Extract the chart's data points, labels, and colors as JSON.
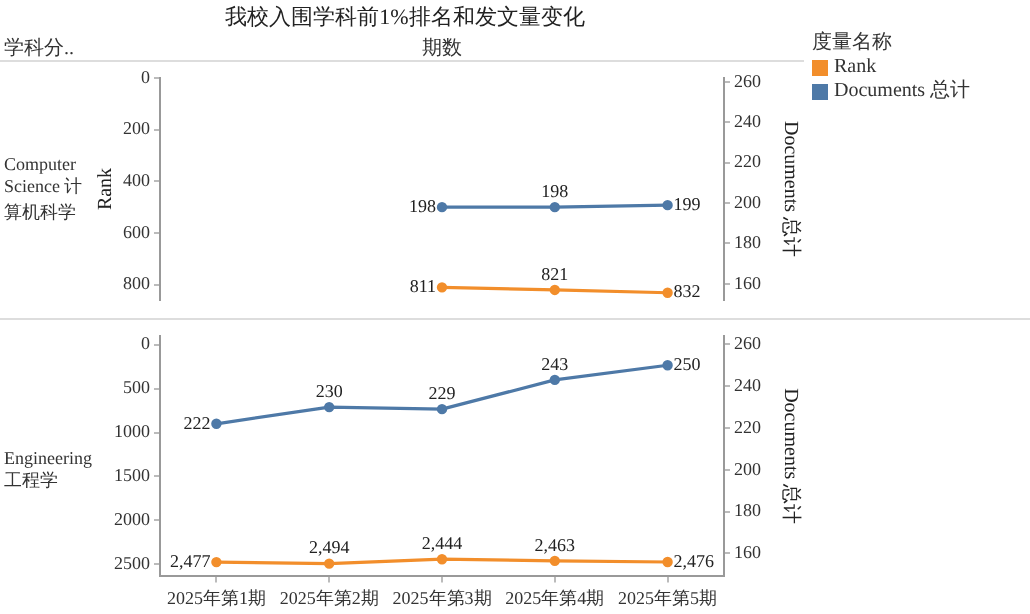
{
  "chart_data": [
    {
      "type": "line",
      "title": "我校入围学科前1%排名和发文量变化",
      "subtitle": "Computer Science 计算机科学",
      "annotations": [
        "学科分..",
        "期数"
      ],
      "legend_title": "度量名称",
      "legend": "right",
      "ylabel": "Rank",
      "y2label": "Documents 总计",
      "categories": [
        "2025年第1期",
        "2025年第2期",
        "2025年第3期",
        "2025年第4期",
        "2025年第5期"
      ],
      "series": [
        {
          "name": "Rank",
          "color": "#f28e2b",
          "values": [
            null,
            null,
            811,
            821,
            832
          ]
        },
        {
          "name": "Documents 总计",
          "color": "#4e79a7",
          "axis": "y2",
          "values": [
            null,
            null,
            198,
            198,
            199
          ]
        }
      ],
      "ylim": [
        860,
        0
      ],
      "yticks": [
        0,
        200,
        400,
        600,
        800
      ],
      "y2lim": [
        152,
        262
      ],
      "y2ticks": [
        160,
        180,
        200,
        220,
        240,
        260
      ],
      "tick_labels": "y",
      "marker": "circle",
      "data_labels": true
    },
    {
      "type": "line",
      "subtitle": "Engineering 工程学",
      "y2label": "Documents 总计",
      "categories": [
        null,
        null,
        null,
        null,
        null
      ],
      "series": [
        {
          "color": "#f28e2b",
          "values": [
            2477,
            2494,
            2444,
            2463,
            2476
          ],
          "value_labels": [
            "2,477",
            "2,494",
            "2,444",
            "2,463",
            "2,476"
          ]
        },
        {
          "color": "#4e79a7",
          "axis": "y2",
          "values": [
            222,
            230,
            229,
            243,
            250
          ]
        }
      ],
      "ylim": [
        2640,
        -100
      ],
      "yticks": [
        0,
        500,
        1000,
        1500,
        2000,
        2500
      ],
      "y2lim": [
        149,
        264
      ],
      "y2ticks": [
        160,
        180,
        200,
        220,
        240,
        260
      ],
      "marker": "circle",
      "data_labels": true
    }
  ]
}
